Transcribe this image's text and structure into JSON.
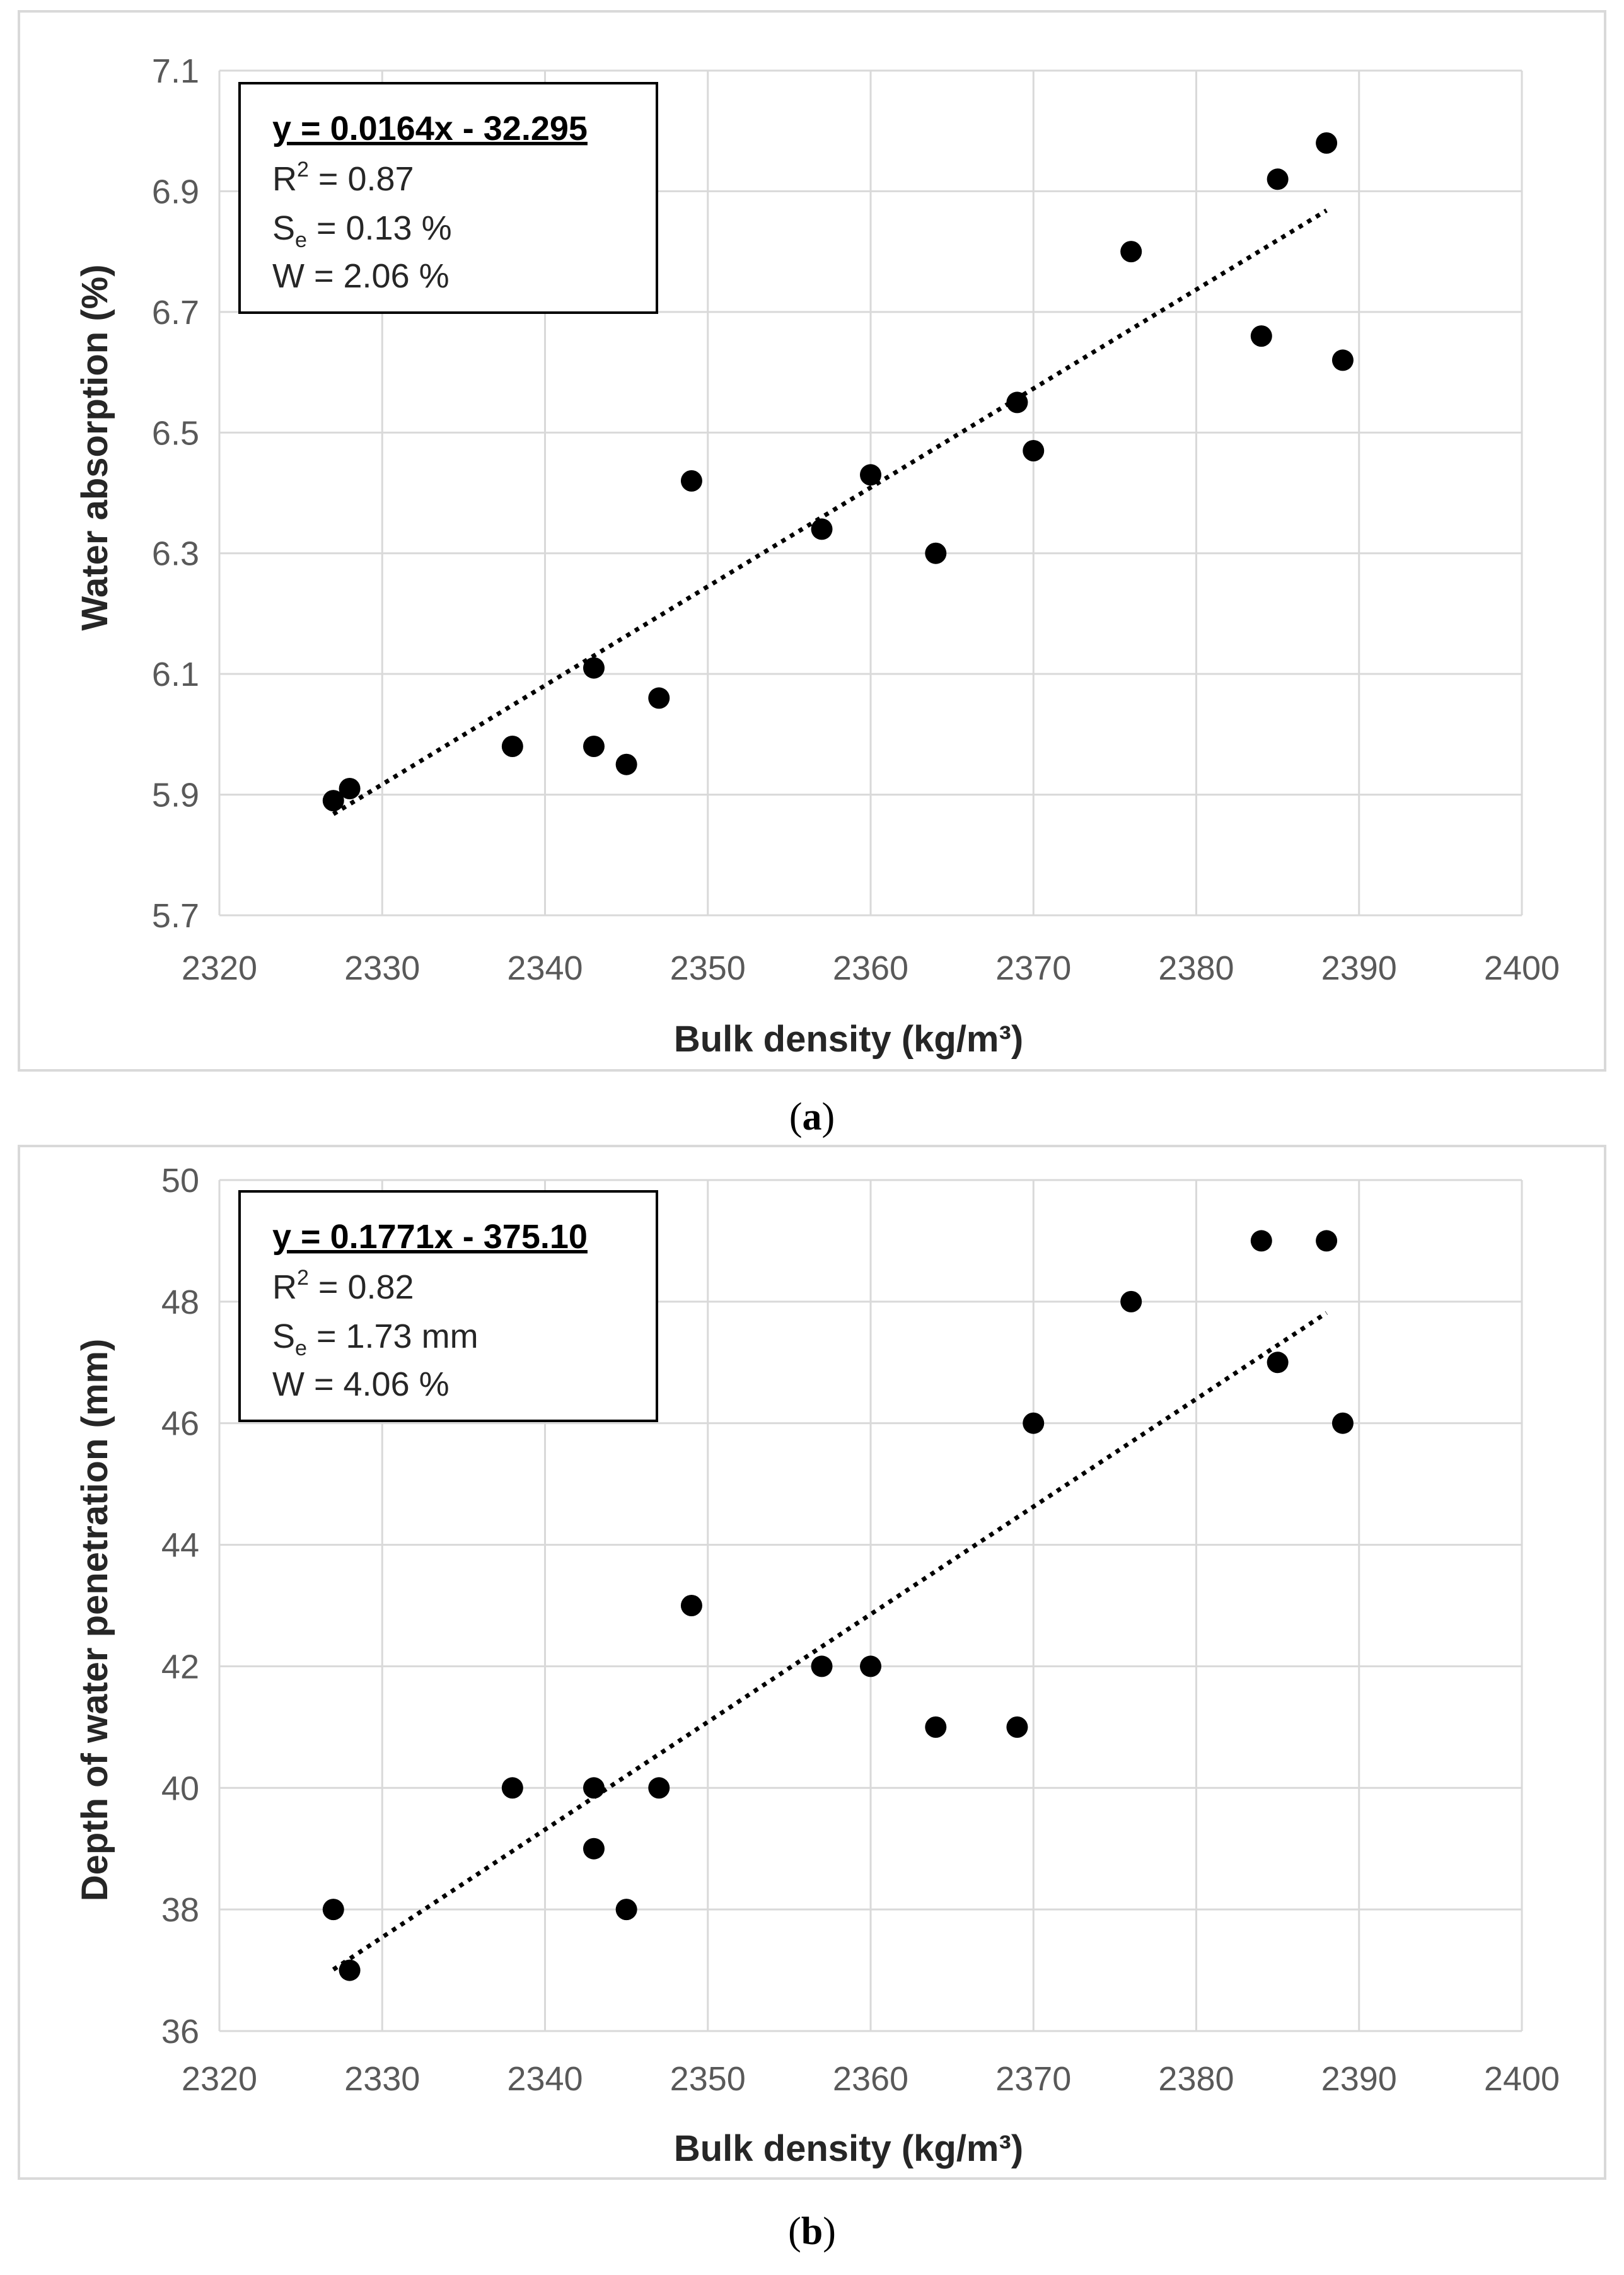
{
  "colors": {
    "grid": "#d9d9d9",
    "border": "#d9d9d9",
    "point": "#000000",
    "trend": "#000000"
  },
  "chart_data": [
    {
      "type": "scatter",
      "panel_label": "a",
      "xlabel": "Bulk density (kg/m³)",
      "ylabel": "Water absorption (%)",
      "xlim": [
        2320,
        2400
      ],
      "ylim": [
        5.7,
        7.1
      ],
      "x_ticks": [
        "2320",
        "2330",
        "2340",
        "2350",
        "2360",
        "2370",
        "2380",
        "2390",
        "2400"
      ],
      "y_ticks": [
        "5.7",
        "5.9",
        "6.1",
        "6.3",
        "6.5",
        "6.7",
        "6.9",
        "7.1"
      ],
      "x_tick_values": [
        2320,
        2330,
        2340,
        2350,
        2360,
        2370,
        2380,
        2390,
        2400
      ],
      "y_tick_values": [
        5.7,
        5.9,
        6.1,
        6.3,
        6.5,
        6.7,
        6.9,
        7.1
      ],
      "grid": true,
      "legend": "top-left",
      "annotation": {
        "equation": "y = 0.0164x - 32.295",
        "r2_prefix": "R",
        "r2_sup": "2",
        "r2_value": " = 0.87",
        "se_prefix": "S",
        "se_sub": "e",
        "se_value": " = 0.13 %",
        "w_line": "W = 2.06 %"
      },
      "trendline": {
        "slope": 0.0164,
        "intercept": -32.295,
        "x_start": 2327,
        "x_end": 2388
      },
      "points": [
        {
          "x": 2327,
          "y": 5.89
        },
        {
          "x": 2328,
          "y": 5.91
        },
        {
          "x": 2338,
          "y": 5.98
        },
        {
          "x": 2343,
          "y": 6.11
        },
        {
          "x": 2343,
          "y": 5.98
        },
        {
          "x": 2345,
          "y": 5.95
        },
        {
          "x": 2347,
          "y": 6.06
        },
        {
          "x": 2349,
          "y": 6.42
        },
        {
          "x": 2357,
          "y": 6.34
        },
        {
          "x": 2360,
          "y": 6.43
        },
        {
          "x": 2364,
          "y": 6.3
        },
        {
          "x": 2369,
          "y": 6.55
        },
        {
          "x": 2370,
          "y": 6.47
        },
        {
          "x": 2376,
          "y": 6.8
        },
        {
          "x": 2384,
          "y": 6.66
        },
        {
          "x": 2385,
          "y": 6.92
        },
        {
          "x": 2388,
          "y": 6.98
        },
        {
          "x": 2389,
          "y": 6.62
        }
      ]
    },
    {
      "type": "scatter",
      "panel_label": "b",
      "xlabel": "Bulk density (kg/m³)",
      "ylabel": "Depth of water penetration (mm)",
      "xlim": [
        2320,
        2400
      ],
      "ylim": [
        36,
        50
      ],
      "x_ticks": [
        "2320",
        "2330",
        "2340",
        "2350",
        "2360",
        "2370",
        "2380",
        "2390",
        "2400"
      ],
      "y_ticks": [
        "36",
        "38",
        "40",
        "42",
        "44",
        "46",
        "48",
        "50"
      ],
      "x_tick_values": [
        2320,
        2330,
        2340,
        2350,
        2360,
        2370,
        2380,
        2390,
        2400
      ],
      "y_tick_values": [
        36,
        38,
        40,
        42,
        44,
        46,
        48,
        50
      ],
      "grid": true,
      "legend": "top-left",
      "annotation": {
        "equation": "y = 0.1771x - 375.10",
        "r2_prefix": "R",
        "r2_sup": "2",
        "r2_value": " = 0.82",
        "se_prefix": "S",
        "se_sub": "e",
        "se_value": " = 1.73 mm",
        "w_line": "W = 4.06 %"
      },
      "trendline": {
        "slope": 0.1771,
        "intercept": -375.1,
        "x_start": 2327,
        "x_end": 2388
      },
      "points": [
        {
          "x": 2327,
          "y": 38
        },
        {
          "x": 2328,
          "y": 37
        },
        {
          "x": 2338,
          "y": 40
        },
        {
          "x": 2343,
          "y": 40
        },
        {
          "x": 2343,
          "y": 39
        },
        {
          "x": 2345,
          "y": 38
        },
        {
          "x": 2347,
          "y": 40
        },
        {
          "x": 2349,
          "y": 43
        },
        {
          "x": 2357,
          "y": 42
        },
        {
          "x": 2360,
          "y": 42
        },
        {
          "x": 2364,
          "y": 41
        },
        {
          "x": 2369,
          "y": 41
        },
        {
          "x": 2370,
          "y": 46
        },
        {
          "x": 2376,
          "y": 48
        },
        {
          "x": 2384,
          "y": 49
        },
        {
          "x": 2385,
          "y": 47
        },
        {
          "x": 2388,
          "y": 49
        },
        {
          "x": 2389,
          "y": 46
        }
      ]
    }
  ]
}
